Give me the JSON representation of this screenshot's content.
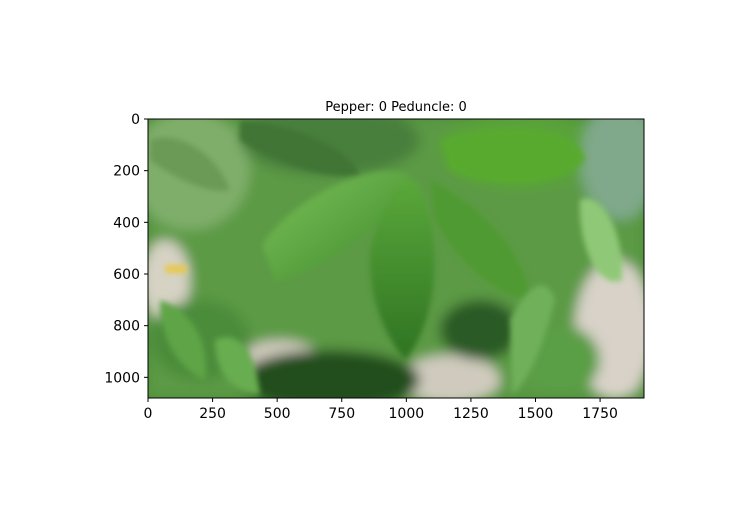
{
  "chart_data": {
    "type": "image",
    "title": "Pepper: 0 Peduncle: 0",
    "xlabel": "",
    "ylabel": "",
    "xlim": [
      0,
      1920
    ],
    "ylim": [
      1080,
      0
    ],
    "xticks": [
      0,
      250,
      500,
      750,
      1000,
      1250,
      1500,
      1750
    ],
    "yticks": [
      0,
      200,
      400,
      600,
      800,
      1000
    ],
    "xtick_labels": [
      "0",
      "250",
      "500",
      "750",
      "1000",
      "1250",
      "1500",
      "1750"
    ],
    "ytick_labels": [
      "0",
      "200",
      "400",
      "600",
      "800",
      "1000"
    ],
    "grid": false,
    "image_content": "blurred-green-pepper-plant-leaves"
  }
}
